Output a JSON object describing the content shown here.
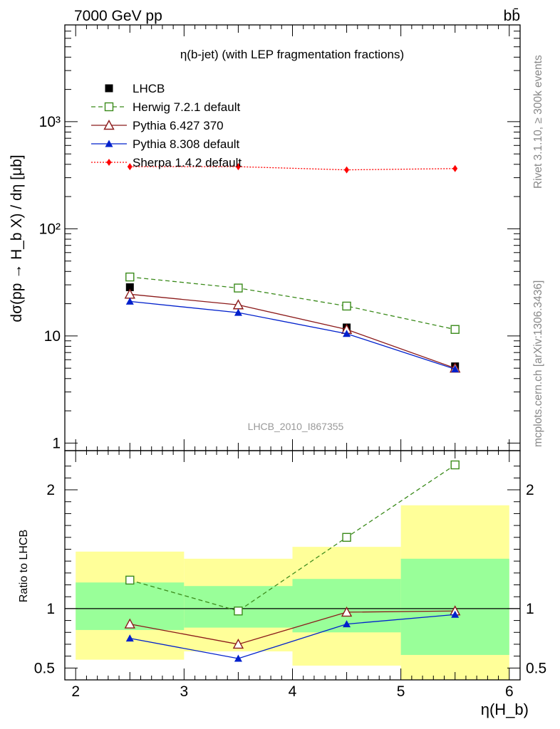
{
  "header": {
    "left": "7000 GeV pp",
    "right": "bb̄"
  },
  "side": {
    "rivet": "Rivet 3.1.10, ≥ 300k events",
    "mcplots": "mcplots.cern.ch [arXiv:1306.3436]"
  },
  "chart_data": [
    {
      "type": "line",
      "title": "η(b-jet) (with LEP fragmentation fractions)",
      "watermark": "LHCB_2010_I867355",
      "ylabel": "dσ(pp → H_b X) / dη [μb]",
      "yscale": "log",
      "ylim": [
        0.85,
        8000
      ],
      "xlim": [
        1.9,
        6.1
      ],
      "xticks": [
        "2",
        "3",
        "4",
        "5",
        "6"
      ],
      "yticks": [
        "1",
        "10",
        "10²",
        "10³"
      ],
      "x": [
        2.5,
        3.5,
        4.5,
        5.5
      ],
      "series": [
        {
          "name": "LHCB",
          "values": [
            28.5,
            28.0,
            12.0,
            5.2
          ],
          "color": "#000000",
          "marker": "square-filled"
        },
        {
          "name": "Herwig 7.2.1 default",
          "values": [
            35.5,
            28.0,
            19.0,
            11.5
          ],
          "color": "#3a8a1a",
          "marker": "square-open",
          "dash": "6,4"
        },
        {
          "name": "Pythia 6.427 370",
          "values": [
            24.5,
            19.5,
            11.5,
            5.0
          ],
          "color": "#8b1a1a",
          "marker": "triangle-open"
        },
        {
          "name": "Pythia 8.308 default",
          "values": [
            21.0,
            16.5,
            10.5,
            4.9
          ],
          "color": "#0020cc",
          "marker": "triangle-filled"
        },
        {
          "name": "Sherpa 1.4.2 default",
          "values": [
            380,
            380,
            355,
            365
          ],
          "color": "#ff0000",
          "marker": "diamond-filled",
          "dash": "2,2"
        }
      ]
    },
    {
      "type": "line",
      "ylabel": "Ratio to LHCB",
      "ylim": [
        0.4,
        2.33
      ],
      "xlim": [
        1.9,
        6.1
      ],
      "xlabel": "η(H_b)",
      "xticks": [
        "2",
        "3",
        "4",
        "5",
        "6"
      ],
      "yticks": [
        "0.5",
        "1",
        "2"
      ],
      "x": [
        2.5,
        3.5,
        4.5,
        5.5
      ],
      "bands": [
        {
          "x0": 2,
          "x1": 3,
          "yellow": [
            0.57,
            1.48
          ],
          "green": [
            0.82,
            1.22
          ]
        },
        {
          "x0": 3,
          "x1": 4,
          "yellow": [
            0.64,
            1.42
          ],
          "green": [
            0.84,
            1.19
          ]
        },
        {
          "x0": 4,
          "x1": 5,
          "yellow": [
            0.52,
            1.52
          ],
          "green": [
            0.8,
            1.25
          ]
        },
        {
          "x0": 5,
          "x1": 6,
          "yellow": [
            0.32,
            1.87
          ],
          "green": [
            0.61,
            1.42
          ]
        }
      ],
      "reference": 1,
      "series": [
        {
          "name": "Herwig 7.2.1 default",
          "values": [
            1.24,
            0.98,
            1.6,
            2.21
          ]
        },
        {
          "name": "Pythia 6.427 370",
          "values": [
            0.87,
            0.7,
            0.97,
            0.98
          ]
        },
        {
          "name": "Pythia 8.308 default",
          "values": [
            0.75,
            0.58,
            0.87,
            0.95
          ]
        }
      ]
    }
  ]
}
